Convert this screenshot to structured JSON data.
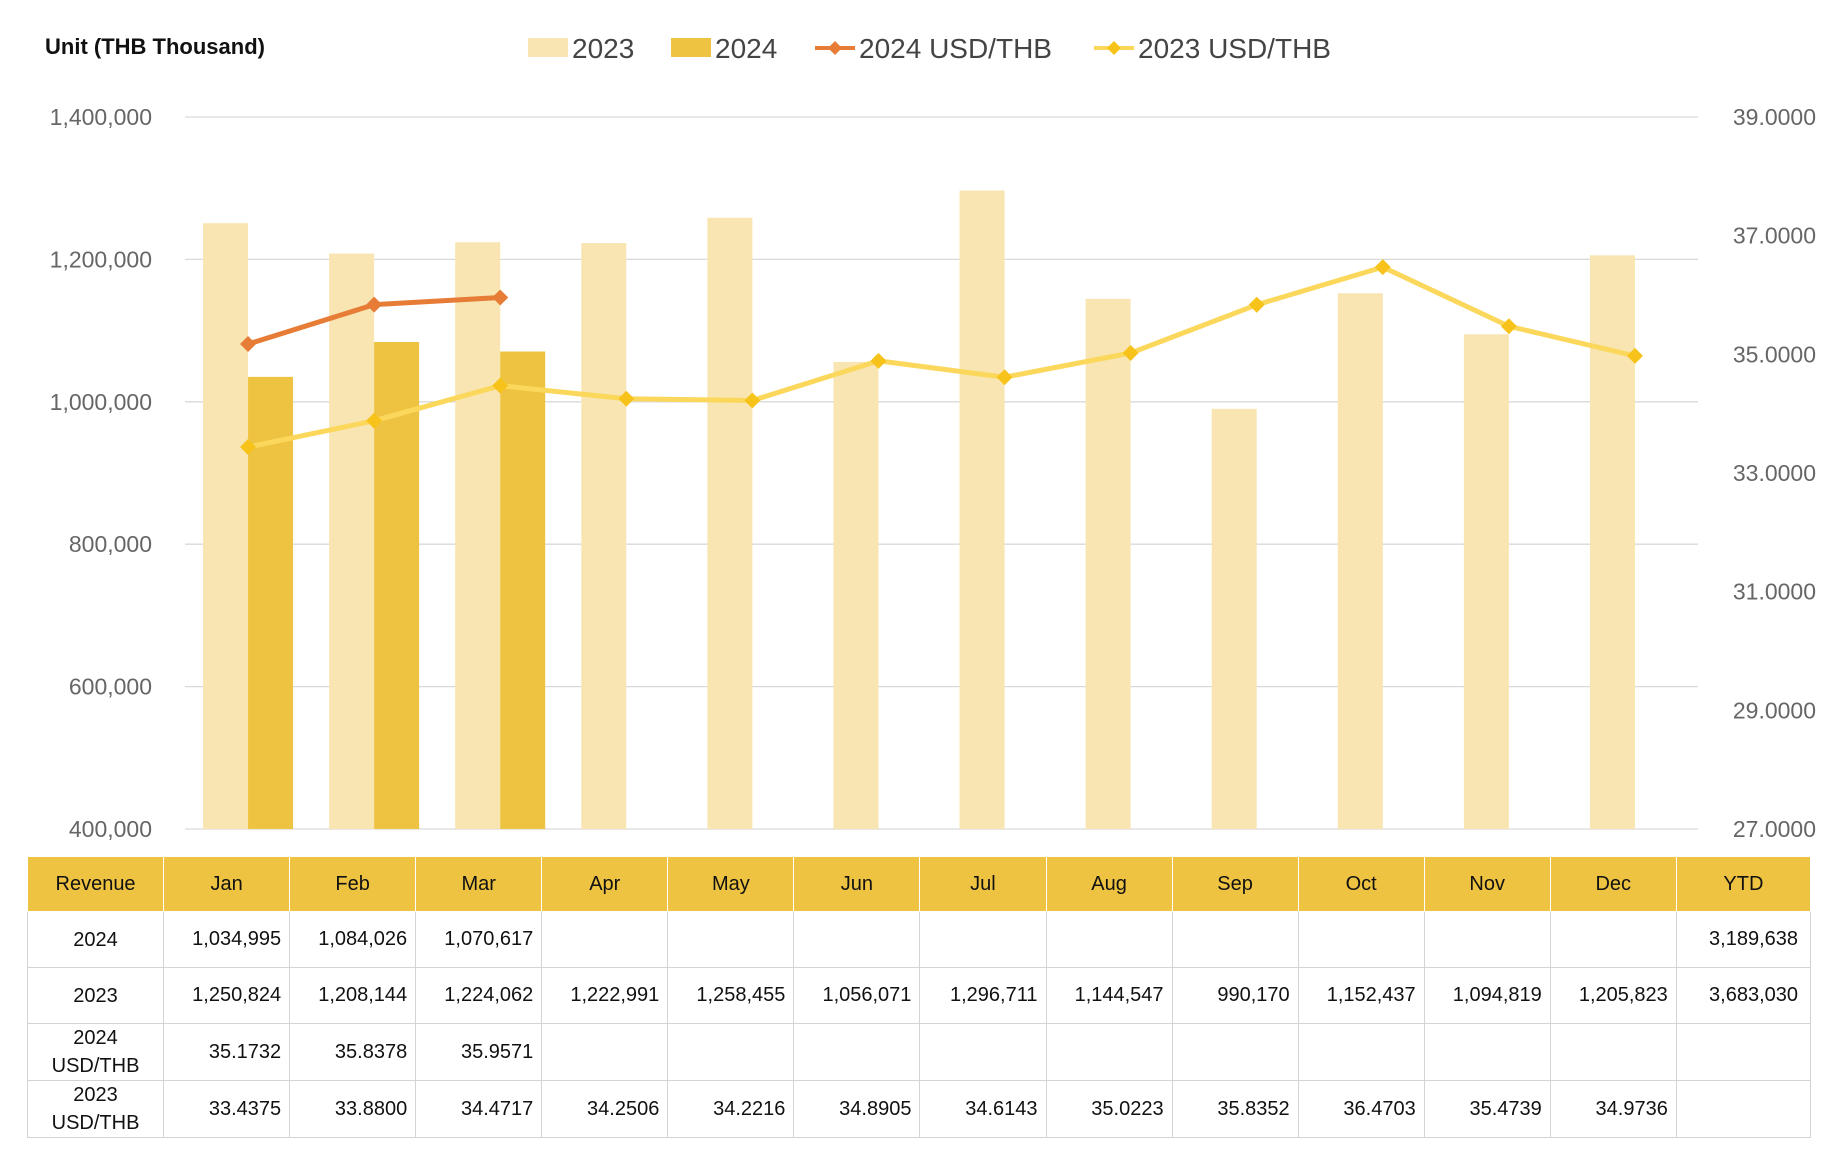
{
  "unit_label": "Unit (THB  Thousand)",
  "colors": {
    "bar_2023": "#f8e5b1",
    "bar_2024": "#efc342",
    "line_2024": "#e67c36",
    "line_2023": "#fbd85c",
    "marker_2023": "#f7c31a",
    "grid": "#d9d9d9",
    "table_header": "#efc342"
  },
  "chart_data": {
    "type": "bar",
    "categories": [
      "Jan",
      "Feb",
      "Mar",
      "Apr",
      "May",
      "Jun",
      "Jul",
      "Aug",
      "Sep",
      "Oct",
      "Nov",
      "Dec"
    ],
    "series": [
      {
        "name": "2023",
        "kind": "bar",
        "axis": "left",
        "values": [
          1250824,
          1208144,
          1224062,
          1222991,
          1258455,
          1056071,
          1296711,
          1144547,
          990170,
          1152437,
          1094819,
          1205823
        ]
      },
      {
        "name": "2024",
        "kind": "bar",
        "axis": "left",
        "values": [
          1034995,
          1084026,
          1070617,
          null,
          null,
          null,
          null,
          null,
          null,
          null,
          null,
          null
        ]
      },
      {
        "name": "2024 USD/THB",
        "kind": "line",
        "axis": "right",
        "marker": "diamond",
        "values": [
          35.1732,
          35.8378,
          35.9571,
          null,
          null,
          null,
          null,
          null,
          null,
          null,
          null,
          null
        ]
      },
      {
        "name": "2023 USD/THB",
        "kind": "line",
        "axis": "right",
        "marker": "diamond",
        "values": [
          33.4375,
          33.88,
          34.4717,
          34.2506,
          34.2216,
          34.8905,
          34.6143,
          35.0223,
          35.8352,
          36.4703,
          35.4739,
          34.9736
        ]
      }
    ],
    "y_left": {
      "ylim": [
        400000,
        1400000
      ],
      "ticks": [
        "400,000",
        "600,000",
        "800,000",
        "1,000,000",
        "1,200,000",
        "1,400,000"
      ]
    },
    "y_right": {
      "ylim": [
        27,
        39
      ],
      "ticks": [
        "27.0000",
        "29.0000",
        "31.0000",
        "33.0000",
        "35.0000",
        "37.0000",
        "39.0000"
      ]
    },
    "grid": true,
    "legend_position": "top"
  },
  "table": {
    "header": [
      "Revenue",
      "Jan",
      "Feb",
      "Mar",
      "Apr",
      "May",
      "Jun",
      "Jul",
      "Aug",
      "Sep",
      "Oct",
      "Nov",
      "Dec",
      "YTD"
    ],
    "rows": [
      {
        "label": [
          "2024"
        ],
        "cells": [
          "1,034,995",
          "1,084,026",
          "1,070,617",
          "",
          "",
          "",
          "",
          "",
          "",
          "",
          "",
          ""
        ],
        "ytd": "3,189,638"
      },
      {
        "label": [
          "2023"
        ],
        "cells": [
          "1,250,824",
          "1,208,144",
          "1,224,062",
          "1,222,991",
          "1,258,455",
          "1,056,071",
          "1,296,711",
          "1,144,547",
          "990,170",
          "1,152,437",
          "1,094,819",
          "1,205,823"
        ],
        "ytd": "3,683,030"
      },
      {
        "label": [
          "2024",
          "USD/THB"
        ],
        "cells": [
          "35.1732",
          "35.8378",
          "35.9571",
          "",
          "",
          "",
          "",
          "",
          "",
          "",
          "",
          ""
        ],
        "ytd": ""
      },
      {
        "label": [
          "2023",
          "USD/THB"
        ],
        "cells": [
          "33.4375",
          "33.8800",
          "34.4717",
          "34.2506",
          "34.2216",
          "34.8905",
          "34.6143",
          "35.0223",
          "35.8352",
          "36.4703",
          "35.4739",
          "34.9736"
        ],
        "ytd": ""
      }
    ]
  }
}
